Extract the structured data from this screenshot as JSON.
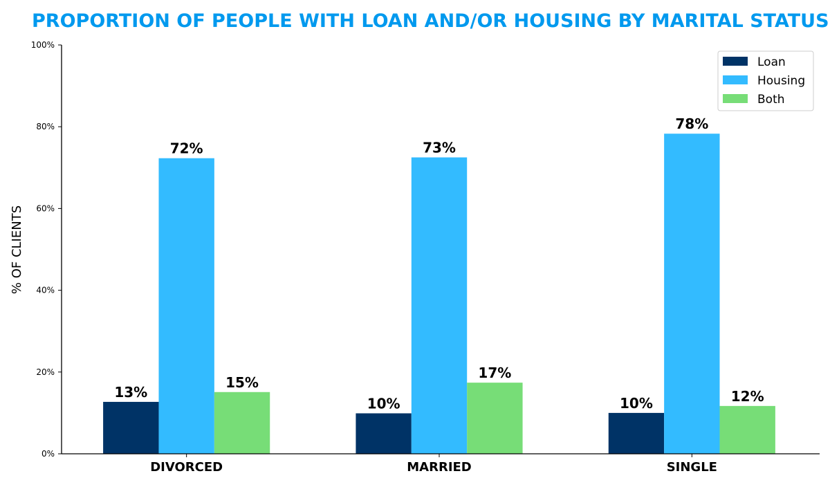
{
  "chart_data": {
    "type": "bar",
    "title": "PROPORTION OF PEOPLE WITH LOAN AND/OR HOUSING BY MARITAL STATUS",
    "xlabel": "",
    "ylabel": "% OF CLIENTS",
    "categories": [
      "DIVORCED",
      "MARRIED",
      "SINGLE"
    ],
    "series": [
      {
        "name": "Loan",
        "color": "#003366",
        "values": [
          0.127,
          0.099,
          0.1
        ],
        "labels": [
          "13%",
          "10%",
          "10%"
        ]
      },
      {
        "name": "Housing",
        "color": "#33BBFF",
        "values": [
          0.723,
          0.725,
          0.783
        ],
        "labels": [
          "72%",
          "73%",
          "78%"
        ]
      },
      {
        "name": "Both",
        "color": "#77DD77",
        "values": [
          0.151,
          0.174,
          0.117
        ],
        "labels": [
          "15%",
          "17%",
          "12%"
        ]
      }
    ],
    "ylim": [
      0,
      1
    ],
    "yticks": [
      0,
      0.2,
      0.4,
      0.6,
      0.8,
      1.0
    ],
    "ytick_labels": [
      "0%",
      "20%",
      "40%",
      "60%",
      "80%",
      "100%"
    ],
    "grid": false,
    "legend_position": "top-right",
    "title_color": "#0099EE"
  }
}
